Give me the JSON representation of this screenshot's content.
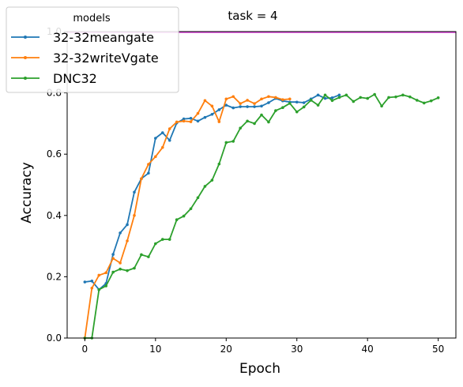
{
  "chart_data": {
    "type": "line",
    "title": "task = 4",
    "xlabel": "Epoch",
    "ylabel": "Accuracy",
    "xlim": [
      -2.5,
      52.5
    ],
    "ylim": [
      0.0,
      1.0
    ],
    "xticks": [
      0,
      10,
      20,
      30,
      40,
      50
    ],
    "yticks": [
      0.0,
      0.2,
      0.4,
      0.6,
      0.8,
      1.0
    ],
    "grid": false,
    "legend": {
      "title": "models",
      "placement": "top-left"
    },
    "reference_line": {
      "y": 1.0,
      "color": "#e040e0"
    },
    "series": [
      {
        "name": "32-32meangate",
        "color": "#1f77b4",
        "x": [
          0,
          1,
          2,
          3,
          4,
          5,
          6,
          7,
          8,
          9,
          10,
          11,
          12,
          13,
          14,
          15,
          16,
          17,
          18,
          19,
          20,
          21,
          22,
          23,
          24,
          25,
          26,
          27,
          28,
          29,
          30,
          31,
          32,
          33,
          34,
          35,
          36
        ],
        "values": [
          0.183,
          0.186,
          0.158,
          0.178,
          0.273,
          0.343,
          0.37,
          0.476,
          0.52,
          0.538,
          0.652,
          0.67,
          0.645,
          0.702,
          0.715,
          0.717,
          0.708,
          0.72,
          0.73,
          0.745,
          0.76,
          0.751,
          0.755,
          0.755,
          0.755,
          0.757,
          0.768,
          0.782,
          0.774,
          0.77,
          0.77,
          0.768,
          0.78,
          0.793,
          0.782,
          0.784,
          0.793
        ]
      },
      {
        "name": "32-32writeVgate",
        "color": "#ff7f0e",
        "x": [
          0,
          1,
          2,
          3,
          4,
          5,
          6,
          7,
          8,
          9,
          10,
          11,
          12,
          13,
          14,
          15,
          16,
          17,
          18,
          19,
          20,
          21,
          22,
          23,
          24,
          25,
          26,
          27,
          28,
          29
        ],
        "values": [
          0.0,
          0.163,
          0.205,
          0.213,
          0.26,
          0.245,
          0.317,
          0.4,
          0.52,
          0.567,
          0.592,
          0.622,
          0.683,
          0.705,
          0.708,
          0.706,
          0.733,
          0.775,
          0.757,
          0.706,
          0.78,
          0.788,
          0.765,
          0.776,
          0.765,
          0.78,
          0.788,
          0.785,
          0.778,
          0.78
        ]
      },
      {
        "name": "DNC32",
        "color": "#2ca02c",
        "x": [
          0,
          1,
          2,
          3,
          4,
          5,
          6,
          7,
          8,
          9,
          10,
          11,
          12,
          13,
          14,
          15,
          16,
          17,
          18,
          19,
          20,
          21,
          22,
          23,
          24,
          25,
          26,
          27,
          28,
          29,
          30,
          31,
          32,
          33,
          34,
          35,
          36,
          37,
          38,
          39,
          40,
          41,
          42,
          43,
          44,
          45,
          46,
          47,
          48,
          49,
          50
        ],
        "values": [
          0.0,
          0.0,
          0.158,
          0.17,
          0.215,
          0.225,
          0.22,
          0.228,
          0.272,
          0.265,
          0.308,
          0.322,
          0.322,
          0.386,
          0.398,
          0.422,
          0.458,
          0.495,
          0.515,
          0.568,
          0.638,
          0.642,
          0.685,
          0.708,
          0.7,
          0.728,
          0.705,
          0.742,
          0.752,
          0.766,
          0.738,
          0.754,
          0.776,
          0.76,
          0.793,
          0.775,
          0.785,
          0.793,
          0.772,
          0.785,
          0.782,
          0.795,
          0.757,
          0.785,
          0.787,
          0.793,
          0.787,
          0.776,
          0.767,
          0.774,
          0.784
        ]
      }
    ]
  }
}
